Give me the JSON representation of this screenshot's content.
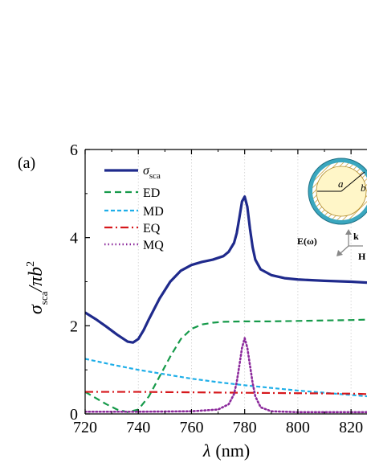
{
  "panel_label": "(a)",
  "chart_data": {
    "type": "line",
    "x_axis": {
      "label_symbol": "λ",
      "label_unit": "(nm)",
      "range": [
        720,
        826
      ],
      "ticks": [
        720,
        740,
        760,
        780,
        800,
        820
      ]
    },
    "y_axis": {
      "label_sigma": "σ",
      "label_sub": "sca",
      "label_rest": "/πb",
      "label_sup": "2",
      "range": [
        0,
        6
      ],
      "ticks": [
        0,
        2,
        4,
        6
      ]
    },
    "grid": "vertical dotted",
    "legend_position": "top-left",
    "series": [
      {
        "name": "σsca",
        "legend_main": "σ",
        "legend_sub": "sca",
        "color": "#1f2a8c",
        "style": "solid",
        "x": [
          720,
          724,
          728,
          732,
          736,
          738,
          740,
          742,
          744,
          748,
          752,
          756,
          760,
          764,
          768,
          772,
          774,
          776,
          777,
          778,
          779,
          780,
          781,
          782,
          783,
          784,
          786,
          790,
          795,
          800,
          810,
          820,
          826
        ],
        "y": [
          2.3,
          2.15,
          1.98,
          1.8,
          1.64,
          1.62,
          1.7,
          1.9,
          2.15,
          2.62,
          3.0,
          3.25,
          3.38,
          3.45,
          3.5,
          3.58,
          3.68,
          3.88,
          4.1,
          4.45,
          4.82,
          4.93,
          4.7,
          4.2,
          3.78,
          3.5,
          3.28,
          3.15,
          3.08,
          3.05,
          3.02,
          3.0,
          2.98
        ]
      },
      {
        "name": "ED",
        "legend_main": "ED",
        "color": "#169a4a",
        "style": "dashed",
        "x": [
          720,
          728,
          732,
          736,
          740,
          744,
          748,
          752,
          756,
          760,
          764,
          768,
          772,
          780,
          790,
          800,
          810,
          820,
          826
        ],
        "y": [
          0.5,
          0.22,
          0.1,
          0.04,
          0.1,
          0.4,
          0.85,
          1.3,
          1.7,
          1.93,
          2.03,
          2.07,
          2.09,
          2.1,
          2.1,
          2.11,
          2.12,
          2.13,
          2.14
        ]
      },
      {
        "name": "MD",
        "legend_main": "MD",
        "color": "#1eaee8",
        "style": "dashed-fine",
        "x": [
          720,
          730,
          740,
          750,
          760,
          770,
          780,
          790,
          800,
          810,
          820,
          826
        ],
        "y": [
          1.25,
          1.12,
          1.0,
          0.9,
          0.8,
          0.72,
          0.65,
          0.59,
          0.53,
          0.48,
          0.43,
          0.4
        ]
      },
      {
        "name": "EQ",
        "legend_main": "EQ",
        "color": "#d6181c",
        "style": "dash-dot",
        "x": [
          720,
          740,
          760,
          780,
          800,
          820,
          826
        ],
        "y": [
          0.5,
          0.5,
          0.49,
          0.48,
          0.47,
          0.46,
          0.45
        ]
      },
      {
        "name": "MQ",
        "legend_main": "MQ",
        "color": "#8c2a9c",
        "style": "dotted",
        "x": [
          720,
          740,
          760,
          770,
          774,
          776,
          777,
          778,
          779,
          780,
          781,
          782,
          783,
          784,
          786,
          790,
          800,
          826
        ],
        "y": [
          0.05,
          0.05,
          0.06,
          0.1,
          0.22,
          0.45,
          0.72,
          1.1,
          1.5,
          1.72,
          1.5,
          1.1,
          0.7,
          0.4,
          0.15,
          0.06,
          0.04,
          0.04
        ]
      }
    ]
  },
  "inset": {
    "label_a": "a",
    "label_b": "b",
    "label_k": "k",
    "label_E": "E(ω)",
    "label_H": "H",
    "colors": {
      "shell": "#3aa7bf",
      "core": "#fff6c8",
      "hatch": "#c9a23a"
    }
  }
}
